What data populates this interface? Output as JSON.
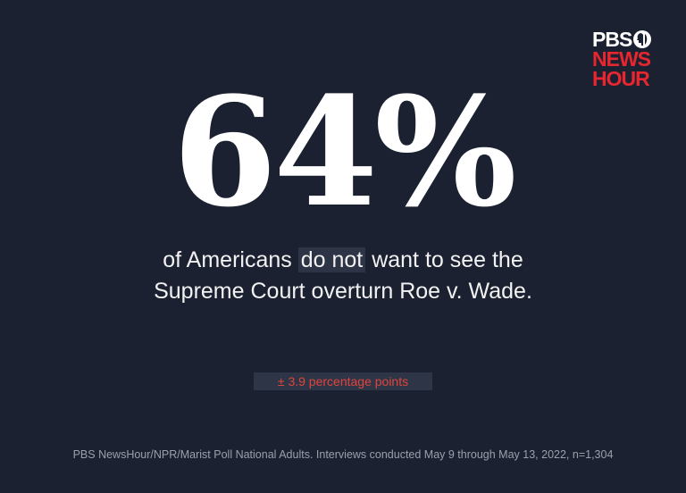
{
  "logo": {
    "line1": "PBS",
    "line2": "NEWS",
    "line3": "HOUR"
  },
  "headline": "64%",
  "statement": {
    "line1_start": "of Americans",
    "highlight": "do not",
    "line1_end": "want to see the",
    "line2": "Supreme Court overturn Roe v. Wade."
  },
  "margin_of_error": "± 3.9 percentage points",
  "source": "PBS NewsHour/NPR/Marist Poll National Adults. Interviews conducted May 9 through May 13, 2022,  n=1,304"
}
